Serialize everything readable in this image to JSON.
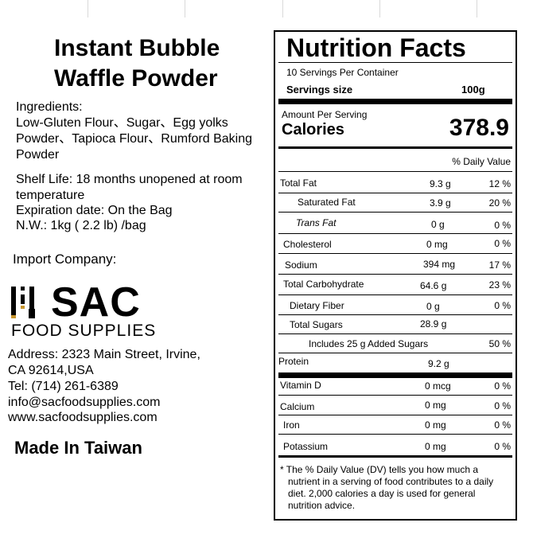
{
  "product": {
    "title_line1": "Instant Bubble",
    "title_line2": "Waffle Powder"
  },
  "ingredients": {
    "heading": "Ingredients:",
    "line1": "Low-Gluten Flour、Sugar、Egg yolks",
    "line2": "Powder、Tapioca Flour、Rumford Baking",
    "line3": "Powder"
  },
  "storage": {
    "shelf_life_line1": "Shelf Life: 18 months unopened at room",
    "shelf_life_line2": "temperature",
    "expiration": "Expiration date: On the Bag",
    "net_weight": "N.W.: 1kg ( 2.2 lb) /bag"
  },
  "importer": {
    "heading": "Import Company:",
    "logo_text": "SAC",
    "logo_sub": "FOOD SUPPLIES",
    "address_line1": "Address: 2323 Main Street, Irvine,",
    "address_line2": "CA 92614,USA",
    "tel": "Tel: (714) 261-6389",
    "email": "info@sacfoodsupplies.com",
    "website": "www.sacfoodsupplies.com"
  },
  "origin": "Made In Taiwan",
  "nutrition": {
    "title": "Nutrition Facts",
    "servings_per_container": "10 Servings Per Container",
    "serving_size_label": "Servings size",
    "serving_size_value": "100g",
    "amount_per_serving": "Amount Per Serving",
    "calories_label": "Calories",
    "calories_value": "378.9",
    "dv_header": "% Daily Value",
    "rows": [
      {
        "label": "Total Fat",
        "amount": "9.3 g",
        "dv": "12 %"
      },
      {
        "label": "Saturated Fat",
        "amount": "3.9 g",
        "dv": "20 %"
      },
      {
        "label": "Trans Fat",
        "amount": "0 g",
        "dv": "0 %"
      },
      {
        "label": "Cholesterol",
        "amount": "0 mg",
        "dv": "0 %"
      },
      {
        "label": "Sodium",
        "amount": "394 mg",
        "dv": "17 %"
      },
      {
        "label": "Total Carbohydrate",
        "amount": "64.6 g",
        "dv": "23 %"
      },
      {
        "label": "Dietary Fiber",
        "amount": "0 g",
        "dv": "0 %"
      },
      {
        "label": "Total Sugars",
        "amount": "28.9 g",
        "dv": ""
      },
      {
        "label": "Includes 25 g Added Sugars",
        "amount": "",
        "dv": "50 %"
      },
      {
        "label": "Protein",
        "amount": "9.2 g",
        "dv": ""
      },
      {
        "label": "Vitamin D",
        "amount": "0 mcg",
        "dv": "0 %"
      },
      {
        "label": "Calcium",
        "amount": "0 mg",
        "dv": "0 %"
      },
      {
        "label": "Iron",
        "amount": "0 mg",
        "dv": "0 %"
      },
      {
        "label": "Potassium",
        "amount": "0 mg",
        "dv": "0 %"
      }
    ],
    "footnote_line1": "* The % Daily Value (DV) tells you how much a",
    "footnote_line2": "nutrient in a serving of food contributes to a daily",
    "footnote_line3": "diet. 2,000 calories a day is used for general",
    "footnote_line4": "nutrition advice."
  }
}
